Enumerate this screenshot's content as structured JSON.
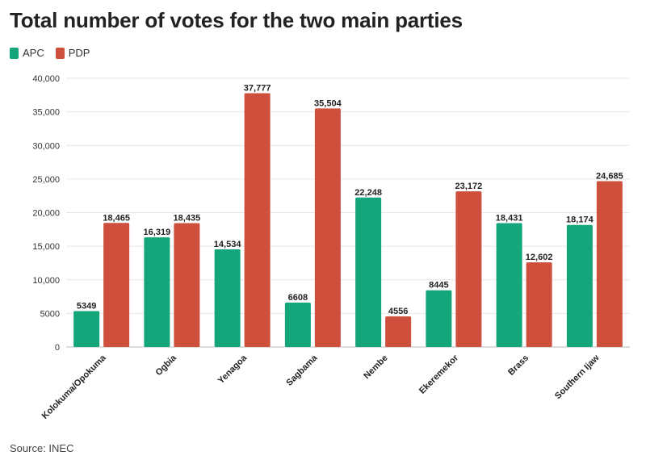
{
  "chart_data": {
    "type": "bar",
    "title": "Total number of votes for the two main parties",
    "categories": [
      "Kolokuma/Opokuma",
      "Ogbia",
      "Yenagoa",
      "Sagbama",
      "Nembe",
      "Ekeremekor",
      "Brass",
      "Southern Ijaw"
    ],
    "series": [
      {
        "name": "APC",
        "color": "#14a67a",
        "values": [
          5349,
          16319,
          14534,
          6608,
          22248,
          8445,
          18431,
          18174
        ],
        "labels": [
          "5349",
          "16,319",
          "14,534",
          "6608",
          "22,248",
          "8445",
          "18,431",
          "18,174"
        ]
      },
      {
        "name": "PDP",
        "color": "#cd4f3c",
        "values": [
          18465,
          18435,
          37777,
          35504,
          4556,
          23172,
          12602,
          24685
        ],
        "labels": [
          "18,465",
          "18,435",
          "37,777",
          "35,504",
          "4556",
          "23,172",
          "12,602",
          "24,685"
        ]
      }
    ],
    "ylim": [
      0,
      40000
    ],
    "yticks": [
      0,
      5000,
      10000,
      15000,
      20000,
      25000,
      30000,
      35000,
      40000
    ],
    "ytick_labels": [
      "0",
      "5000",
      "10,000",
      "15,000",
      "20,000",
      "25,000",
      "30,000",
      "35,000",
      "40,000"
    ],
    "xlabel": "",
    "ylabel": "",
    "grid": true,
    "legend_position": "top-left"
  },
  "source": "Source: INEC"
}
